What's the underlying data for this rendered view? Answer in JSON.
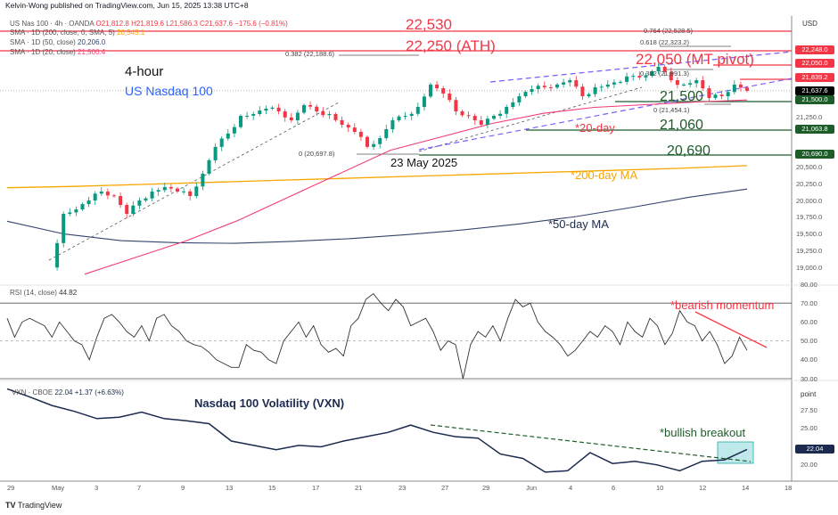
{
  "header": {
    "published": "Kelvin-Wong published on TradingView.com, Jun 15, 2025 13:38 UTC+8",
    "symbol": "US Nas 100 · 4h · OANDA",
    "ohlc": "O21,812.8  H21,819.6  L21,586.3  C21,637.6  −175.6 (−0.81%)",
    "sma200_label": "SMA · 1D (200, close, 0, SMA, 5)",
    "sma200_value": "20,545.1",
    "sma50_label": "SMA · 1D (50, close)",
    "sma50_value": "20,206.0",
    "sma20_label": "SMA · 1D (20, close)",
    "sma20_value": "21,500.4",
    "currency": "USD"
  },
  "colors": {
    "up": "#089981",
    "down": "#f23645",
    "red": "#f23645",
    "green": "#1e5c2a",
    "sma200": "#f7a600",
    "sma50": "#34456b",
    "sma20": "#f23a78",
    "channel": "#7b5cff",
    "vxn": "#1b2a4e",
    "rsi": "#333333"
  },
  "chart_data": [
    {
      "type": "candlestick",
      "title": "US Nas 100 · 4h · OANDA",
      "ylim": [
        18900,
        22650
      ],
      "y_ticks": [
        "21,250.0",
        "20,500.0",
        "20,250.0",
        "20,000.0",
        "19,750.0",
        "19,500.0",
        "19,250.0",
        "19,000.0"
      ],
      "x_ticks": [
        "29",
        "May",
        "3",
        "7",
        "9",
        "13",
        "15",
        "17",
        "21",
        "23",
        "27",
        "29",
        "Jun",
        "4",
        "6",
        "10",
        "12",
        "14",
        "18"
      ],
      "closes": [
        19000,
        19800,
        19867,
        20000,
        20133,
        20066,
        19800,
        20000,
        20133,
        20200,
        20133,
        20066,
        20400,
        20800,
        21000,
        21263,
        21290,
        21370,
        21330,
        21197,
        21423,
        21330,
        21290,
        21130,
        21024,
        20800,
        20930,
        21197,
        21263,
        21396,
        21730,
        21596,
        21330,
        21263,
        21130,
        21263,
        21396,
        21556,
        21662,
        21690,
        21730,
        21795,
        21556,
        21690,
        21730,
        21770,
        21860,
        21860,
        21995,
        21795,
        21730,
        21795,
        21530,
        21556,
        21730,
        21637.6
      ],
      "sma200": [
        20190,
        20210,
        20240,
        20270,
        20300,
        20330,
        20360,
        20390,
        20420,
        20450,
        20480,
        20520
      ],
      "sma50": [
        19690,
        19500,
        19400,
        19370,
        19360,
        19390,
        19430,
        19490,
        19560,
        19650,
        19760,
        19900,
        20050,
        20170
      ],
      "sma20": [
        18900,
        19150,
        19400,
        19700,
        20050,
        20400,
        20750,
        20950,
        21150,
        21300,
        21390,
        21430,
        21470,
        21500
      ],
      "price_badges": [
        {
          "label": "22,248.0",
          "value": 22248,
          "color": "#f23645"
        },
        {
          "label": "22,050.0",
          "value": 22050,
          "color": "#f23645"
        },
        {
          "label": "21,839.2",
          "value": 21839,
          "color": "#f23645"
        },
        {
          "label": "21,637.6",
          "value": 21637.6,
          "color": "#000000"
        },
        {
          "label": "21,500.0",
          "value": 21500,
          "color": "#1e5c2a"
        },
        {
          "label": "21,063.8",
          "value": 21063.8,
          "color": "#1e5c2a"
        },
        {
          "label": "20,690.0",
          "value": 20690,
          "color": "#1e5c2a"
        }
      ],
      "levels": {
        "l22530": "22,530",
        "l22250": "22,250 (ATH)",
        "l22050": "22,050 (MT pivot)",
        "l21500": "21,500",
        "l21060": "21,060",
        "l20690": "20,690"
      },
      "fib_labels": {
        "f764": "0.764 (22,528.5)",
        "f618": "0.618 (22,323.2)",
        "f382a": "0.382 (22,188.6)",
        "f382b": "0.382 (21,991.3)",
        "f0a": "0 (21,454.1)",
        "f0b": "0 (20,697.8)"
      },
      "annotations": {
        "timeframe": "4-hour",
        "instrument": "US Nasdaq 100",
        "date": "23 May 2025",
        "sma20": "*20-day",
        "sma200": "*200-day MA",
        "sma50": "*50-day MA"
      }
    },
    {
      "type": "line",
      "title": "RSI (14, close)",
      "value": "44.82",
      "ylim": [
        26,
        82
      ],
      "y_ticks": [
        "80.00",
        "70.00",
        "60.00",
        "50.00",
        "40.00",
        "30.00"
      ],
      "bands": [
        70,
        50,
        30
      ],
      "values": [
        62,
        52,
        60,
        62,
        60,
        58,
        52,
        60,
        55,
        50,
        48,
        40,
        52,
        62,
        64,
        60,
        55,
        52,
        58,
        50,
        62,
        64,
        58,
        55,
        50,
        48,
        47,
        44,
        40,
        38,
        36,
        36,
        48,
        45,
        44,
        40,
        38,
        50,
        55,
        60,
        52,
        58,
        48,
        44,
        46,
        42,
        58,
        62,
        72,
        75,
        70,
        66,
        72,
        68,
        58,
        60,
        62,
        55,
        45,
        50,
        48,
        30,
        48,
        55,
        52,
        58,
        50,
        62,
        72,
        68,
        70,
        60,
        55,
        52,
        48,
        42,
        45,
        50,
        55,
        52,
        58,
        55,
        48,
        60,
        55,
        52,
        62,
        58,
        48,
        54,
        66,
        60,
        58,
        50,
        55,
        48,
        38,
        42,
        52,
        45
      ],
      "annotation": "*bearish momentum"
    },
    {
      "type": "line",
      "title": "VXN · CBOE",
      "value": "22.04",
      "change": "+1.37 (+6.63%)",
      "ylim": [
        17.5,
        31
      ],
      "y_ticks": [
        "27.50",
        "25.00",
        "20.00"
      ],
      "unit_label": "point",
      "values": [
        30.4,
        29.3,
        28.1,
        27.3,
        26.3,
        26.5,
        27.2,
        26.3,
        26.0,
        25.6,
        23.2,
        22.6,
        22.0,
        22.6,
        22.4,
        23.2,
        23.8,
        24.4,
        25.4,
        24.4,
        23.8,
        23.6,
        21.4,
        20.8,
        18.9,
        19.1,
        21.6,
        20.1,
        20.4,
        19.9,
        19.1,
        20.4,
        20.6,
        22.04
      ],
      "title_annotation": "Nasdaq 100 Volatility (VXN)",
      "annotation": "*bullish breakout"
    }
  ],
  "footer": {
    "brand": "TradingView"
  }
}
